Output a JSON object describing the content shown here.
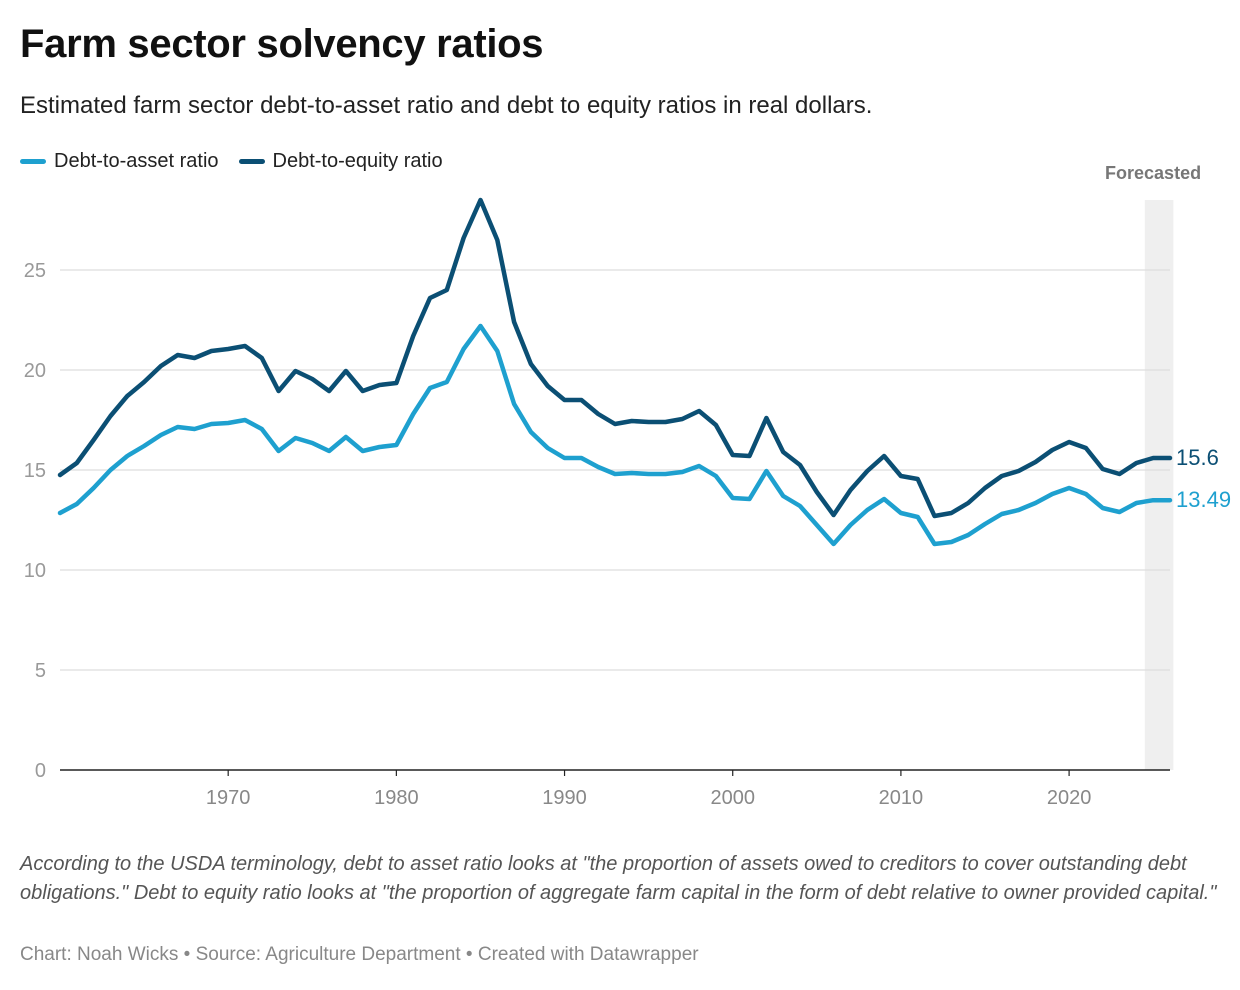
{
  "title": "Farm sector solvency ratios",
  "subtitle": "Estimated farm sector debt-to-asset ratio and debt to equity ratios in real dollars.",
  "notes": "According to the USDA terminology, debt to asset ratio looks at \"the proportion of assets owed to creditors to cover outstanding debt obligations.\" Debt to equity ratio looks at \"the proportion of aggregate farm capital in the form of debt relative to owner provided capital.\"",
  "footer": "Chart: Noah Wicks • Source: Agriculture Department • Created with Datawrapper",
  "chart_data": {
    "type": "line",
    "title": "Farm sector solvency ratios",
    "xlabel": "",
    "ylabel": "",
    "xlim": [
      1960,
      2026
    ],
    "ylim": [
      0,
      28.5
    ],
    "x_ticks": [
      1970,
      1980,
      1990,
      2000,
      2010,
      2020
    ],
    "y_ticks": [
      0,
      5,
      10,
      15,
      20,
      25
    ],
    "grid": true,
    "legend_position": "top-left",
    "highlight_band": {
      "label": "Forecasted",
      "x_from": 2024.5,
      "x_to": 2026.2
    },
    "series": [
      {
        "name": "Debt-to-asset ratio",
        "color": "#1ea0cf",
        "end_label": "13.49",
        "x": [
          1960,
          1961,
          1962,
          1963,
          1964,
          1965,
          1966,
          1967,
          1968,
          1969,
          1970,
          1971,
          1972,
          1973,
          1974,
          1975,
          1976,
          1977,
          1978,
          1979,
          1980,
          1981,
          1982,
          1983,
          1984,
          1985,
          1986,
          1987,
          1988,
          1989,
          1990,
          1991,
          1992,
          1993,
          1994,
          1995,
          1996,
          1997,
          1998,
          1999,
          2000,
          2001,
          2002,
          2003,
          2004,
          2005,
          2006,
          2007,
          2008,
          2009,
          2010,
          2011,
          2012,
          2013,
          2014,
          2015,
          2016,
          2017,
          2018,
          2019,
          2020,
          2021,
          2022,
          2023,
          2024,
          2025,
          2026
        ],
        "values": [
          12.85,
          13.3,
          14.1,
          15.0,
          15.7,
          16.2,
          16.75,
          17.15,
          17.05,
          17.3,
          17.35,
          17.5,
          17.05,
          15.95,
          16.6,
          16.35,
          15.95,
          16.65,
          15.95,
          16.15,
          16.25,
          17.8,
          19.1,
          19.4,
          21.05,
          22.2,
          20.95,
          18.3,
          16.9,
          16.1,
          15.6,
          15.6,
          15.15,
          14.8,
          14.85,
          14.8,
          14.8,
          14.9,
          15.2,
          14.7,
          13.6,
          13.55,
          14.95,
          13.7,
          13.2,
          12.25,
          11.3,
          12.25,
          13.0,
          13.55,
          12.85,
          12.65,
          11.3,
          11.4,
          11.75,
          12.3,
          12.8,
          13.0,
          13.35,
          13.8,
          14.1,
          13.8,
          13.1,
          12.9,
          13.35,
          13.49,
          13.49
        ]
      },
      {
        "name": "Debt-to-equity ratio",
        "color": "#0b4f74",
        "end_label": "15.6",
        "x": [
          1960,
          1961,
          1962,
          1963,
          1964,
          1965,
          1966,
          1967,
          1968,
          1969,
          1970,
          1971,
          1972,
          1973,
          1974,
          1975,
          1976,
          1977,
          1978,
          1979,
          1980,
          1981,
          1982,
          1983,
          1984,
          1985,
          1986,
          1987,
          1988,
          1989,
          1990,
          1991,
          1992,
          1993,
          1994,
          1995,
          1996,
          1997,
          1998,
          1999,
          2000,
          2001,
          2002,
          2003,
          2004,
          2005,
          2006,
          2007,
          2008,
          2009,
          2010,
          2011,
          2012,
          2013,
          2014,
          2015,
          2016,
          2017,
          2018,
          2019,
          2020,
          2021,
          2022,
          2023,
          2024,
          2025,
          2026
        ],
        "values": [
          14.75,
          15.35,
          16.5,
          17.7,
          18.7,
          19.4,
          20.2,
          20.75,
          20.6,
          20.95,
          21.05,
          21.2,
          20.6,
          18.95,
          19.95,
          19.55,
          18.95,
          19.95,
          18.95,
          19.25,
          19.35,
          21.7,
          23.6,
          24.0,
          26.6,
          28.5,
          26.5,
          22.4,
          20.3,
          19.2,
          18.5,
          18.5,
          17.8,
          17.3,
          17.45,
          17.4,
          17.4,
          17.55,
          17.95,
          17.25,
          15.75,
          15.7,
          17.6,
          15.9,
          15.25,
          13.9,
          12.75,
          14.0,
          14.95,
          15.7,
          14.7,
          14.55,
          12.7,
          12.85,
          13.35,
          14.1,
          14.7,
          14.95,
          15.4,
          16.0,
          16.4,
          16.1,
          15.05,
          14.8,
          15.35,
          15.6,
          15.6
        ]
      }
    ]
  }
}
